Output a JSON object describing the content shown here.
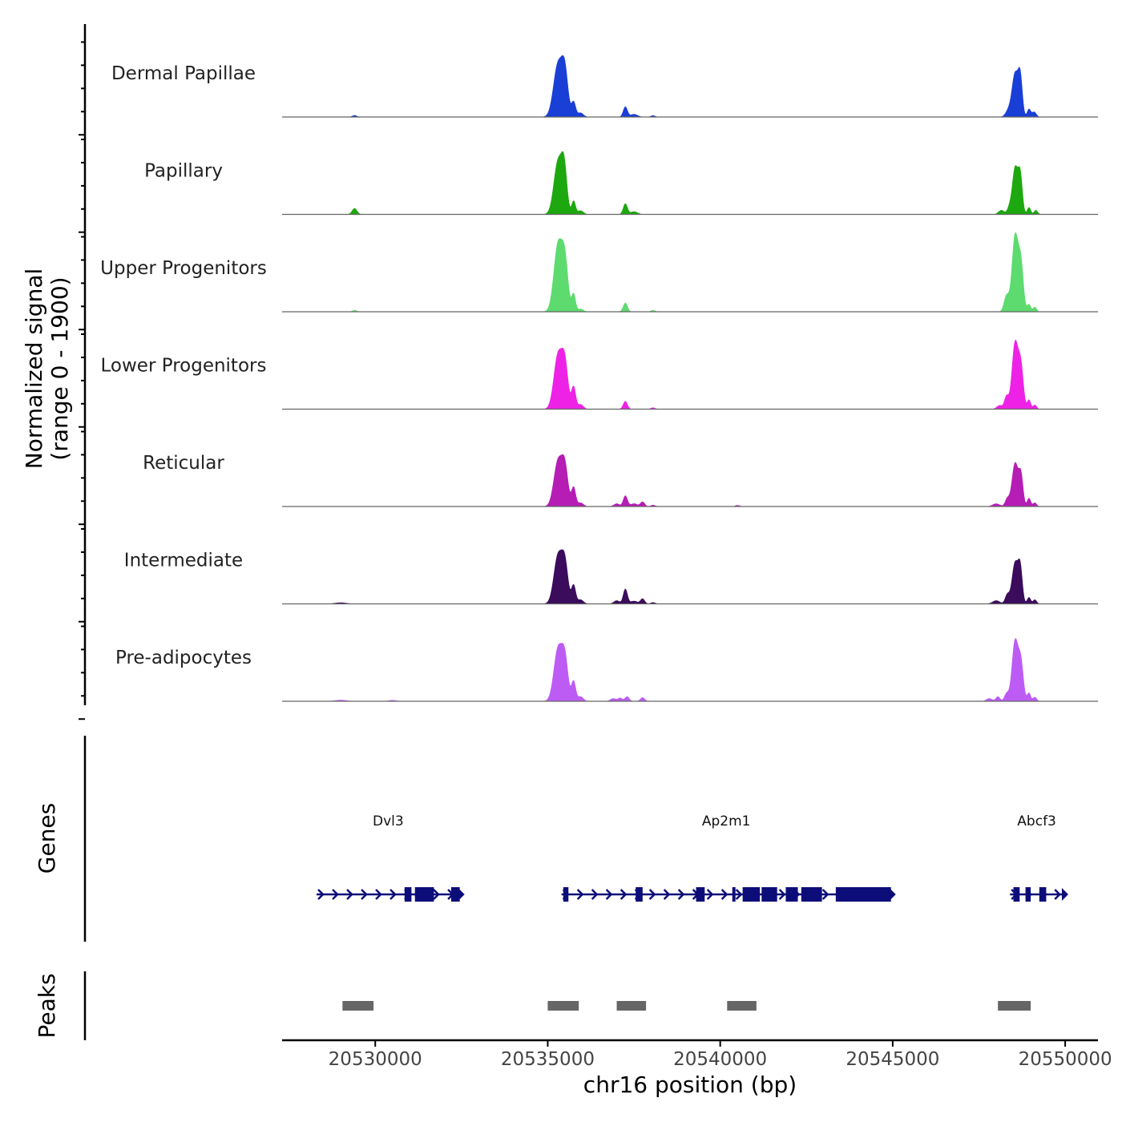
{
  "chart_data": {
    "type": "area",
    "title": "",
    "ylabel_line1": "Normalized signal",
    "ylabel_line2": "(range 0 - 1900)",
    "y_range": [
      0,
      1900
    ],
    "xlabel": "chr16 position (bp)",
    "x_range": [
      20527300,
      20550950
    ],
    "x_ticks": [
      20530000,
      20535000,
      20540000,
      20545000,
      20550000
    ],
    "x_tick_labels": [
      "20530000",
      "20535000",
      "20540000",
      "20545000",
      "20550000"
    ],
    "tracks": [
      {
        "name": "Dermal Papillae",
        "color": "#1a3fd6",
        "peaks": [
          [
            20529400,
            35,
            60
          ],
          [
            20535300,
            1140,
            130
          ],
          [
            20535500,
            860,
            90
          ],
          [
            20535750,
            320,
            60
          ],
          [
            20535950,
            90,
            80
          ],
          [
            20537250,
            220,
            60
          ],
          [
            20537500,
            60,
            100
          ],
          [
            20538050,
            30,
            60
          ],
          [
            20548350,
            130,
            80
          ],
          [
            20548550,
            940,
            90
          ],
          [
            20548700,
            780,
            60
          ],
          [
            20548950,
            170,
            50
          ],
          [
            20549100,
            110,
            60
          ]
        ]
      },
      {
        "name": "Papillary",
        "color": "#1ea80f",
        "peaks": [
          [
            20529400,
            130,
            70
          ],
          [
            20535300,
            1140,
            120
          ],
          [
            20535480,
            880,
            80
          ],
          [
            20535750,
            290,
            55
          ],
          [
            20535950,
            80,
            80
          ],
          [
            20537250,
            230,
            60
          ],
          [
            20537500,
            60,
            100
          ],
          [
            20548150,
            90,
            80
          ],
          [
            20548380,
            130,
            60
          ],
          [
            20548550,
            1010,
            80
          ],
          [
            20548700,
            800,
            60
          ],
          [
            20548950,
            150,
            50
          ],
          [
            20549150,
            90,
            50
          ]
        ]
      },
      {
        "name": "Upper Progenitors",
        "color": "#5ddb6e",
        "peaks": [
          [
            20529400,
            30,
            60
          ],
          [
            20535300,
            1450,
            120
          ],
          [
            20535500,
            1000,
            90
          ],
          [
            20535750,
            380,
            55
          ],
          [
            20535950,
            60,
            80
          ],
          [
            20537250,
            190,
            60
          ],
          [
            20538050,
            30,
            60
          ],
          [
            20548300,
            340,
            70
          ],
          [
            20548550,
            1650,
            90
          ],
          [
            20548720,
            950,
            70
          ],
          [
            20548950,
            160,
            50
          ],
          [
            20549120,
            100,
            50
          ]
        ]
      },
      {
        "name": "Lower Progenitors",
        "color": "#ee22e6",
        "peaks": [
          [
            20535300,
            1170,
            120
          ],
          [
            20535500,
            900,
            90
          ],
          [
            20535750,
            480,
            60
          ],
          [
            20535950,
            100,
            80
          ],
          [
            20537250,
            170,
            60
          ],
          [
            20538050,
            30,
            60
          ],
          [
            20548100,
            80,
            80
          ],
          [
            20548300,
            270,
            60
          ],
          [
            20548550,
            1440,
            90
          ],
          [
            20548720,
            840,
            70
          ],
          [
            20548950,
            200,
            50
          ],
          [
            20549120,
            90,
            50
          ]
        ]
      },
      {
        "name": "Reticular",
        "color": "#b51db5",
        "peaks": [
          [
            20535300,
            980,
            120
          ],
          [
            20535500,
            780,
            90
          ],
          [
            20535750,
            410,
            60
          ],
          [
            20535950,
            80,
            80
          ],
          [
            20537000,
            60,
            80
          ],
          [
            20537250,
            230,
            60
          ],
          [
            20537500,
            60,
            100
          ],
          [
            20537750,
            100,
            60
          ],
          [
            20538050,
            30,
            60
          ],
          [
            20540500,
            25,
            60
          ],
          [
            20548000,
            60,
            100
          ],
          [
            20548320,
            160,
            60
          ],
          [
            20548550,
            940,
            90
          ],
          [
            20548720,
            620,
            60
          ],
          [
            20548950,
            180,
            50
          ],
          [
            20549120,
            80,
            50
          ]
        ]
      },
      {
        "name": "Intermediate",
        "color": "#3b0b5c",
        "peaks": [
          [
            20529000,
            25,
            150
          ],
          [
            20535300,
            1040,
            120
          ],
          [
            20535500,
            800,
            90
          ],
          [
            20535750,
            400,
            60
          ],
          [
            20535950,
            90,
            80
          ],
          [
            20537000,
            70,
            80
          ],
          [
            20537250,
            320,
            60
          ],
          [
            20537500,
            60,
            100
          ],
          [
            20537750,
            110,
            60
          ],
          [
            20538050,
            30,
            60
          ],
          [
            20548000,
            70,
            100
          ],
          [
            20548320,
            190,
            60
          ],
          [
            20548550,
            890,
            90
          ],
          [
            20548700,
            690,
            60
          ],
          [
            20548950,
            140,
            50
          ],
          [
            20549120,
            90,
            50
          ]
        ]
      },
      {
        "name": "Pre-adipocytes",
        "color": "#bd5cf5",
        "peaks": [
          [
            20529000,
            25,
            150
          ],
          [
            20530500,
            20,
            100
          ],
          [
            20535300,
            1130,
            120
          ],
          [
            20535500,
            840,
            90
          ],
          [
            20535750,
            430,
            60
          ],
          [
            20535950,
            100,
            80
          ],
          [
            20536900,
            60,
            80
          ],
          [
            20537100,
            70,
            60
          ],
          [
            20537300,
            100,
            60
          ],
          [
            20537750,
            80,
            60
          ],
          [
            20547800,
            60,
            80
          ],
          [
            20548050,
            100,
            60
          ],
          [
            20548300,
            160,
            60
          ],
          [
            20548550,
            1310,
            90
          ],
          [
            20548720,
            760,
            70
          ],
          [
            20548950,
            180,
            50
          ],
          [
            20549120,
            90,
            50
          ]
        ]
      }
    ],
    "genes_label": "Genes",
    "genes": [
      {
        "name": "Dvl3",
        "start": 20528300,
        "end": 20532450,
        "exons": [
          [
            20530850,
            20531050
          ],
          [
            20531150,
            20531700
          ],
          [
            20532200,
            20532450
          ]
        ]
      },
      {
        "name": "Ap2m1",
        "start": 20535400,
        "end": 20544950,
        "exons": [
          [
            20535450,
            20535600
          ],
          [
            20537550,
            20537750
          ],
          [
            20539300,
            20539550
          ],
          [
            20540350,
            20540420
          ],
          [
            20540650,
            20541150
          ],
          [
            20541200,
            20541650
          ],
          [
            20541900,
            20542250
          ],
          [
            20542350,
            20542950
          ],
          [
            20543350,
            20544950
          ]
        ]
      },
      {
        "name": "Abcf3",
        "start": 20548400,
        "end": 20549950,
        "exons": [
          [
            20548500,
            20548680
          ],
          [
            20548850,
            20549000
          ],
          [
            20549250,
            20549450
          ]
        ]
      }
    ],
    "peaks_label": "Peaks",
    "peak_regions": [
      [
        20529050,
        20529950
      ],
      [
        20535000,
        20535900
      ],
      [
        20537000,
        20537850
      ],
      [
        20540200,
        20541050
      ],
      [
        20548050,
        20549000
      ]
    ]
  }
}
